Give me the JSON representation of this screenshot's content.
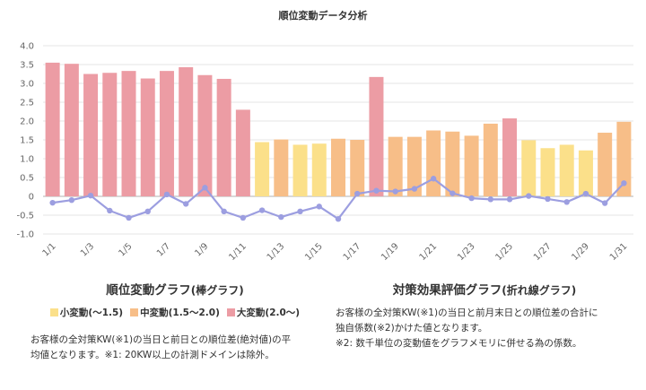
{
  "chart_data": {
    "type": "bar",
    "title": "順位変動データ分析",
    "xlabel": "",
    "ylabel": "",
    "ylim": [
      -1.0,
      4.0
    ],
    "yticks": [
      "4.0",
      "3.5",
      "3.0",
      "2.5",
      "2.0",
      "1.5",
      "1.0",
      "0.5",
      "0",
      "-0.5",
      "-1.0"
    ],
    "categories": [
      "1/1",
      "1/2",
      "1/3",
      "1/4",
      "1/5",
      "1/6",
      "1/7",
      "1/8",
      "1/9",
      "1/10",
      "1/11",
      "1/12",
      "1/13",
      "1/14",
      "1/15",
      "1/16",
      "1/17",
      "1/18",
      "1/19",
      "1/20",
      "1/21",
      "1/22",
      "1/23",
      "1/24",
      "1/25",
      "1/26",
      "1/27",
      "1/28",
      "1/29",
      "1/30",
      "1/31"
    ],
    "x_tick_labels": [
      "1/1",
      "1/3",
      "1/5",
      "1/7",
      "1/9",
      "1/11",
      "1/13",
      "1/15",
      "1/17",
      "1/19",
      "1/21",
      "1/23",
      "1/25",
      "1/27",
      "1/29",
      "1/31"
    ],
    "series": [
      {
        "name": "順位変動グラフ",
        "type": "bar",
        "values": [
          3.55,
          3.52,
          3.25,
          3.28,
          3.33,
          3.13,
          3.33,
          3.43,
          3.22,
          3.12,
          2.3,
          1.44,
          1.51,
          1.37,
          1.4,
          1.53,
          1.5,
          3.17,
          1.58,
          1.58,
          1.75,
          1.72,
          1.61,
          1.93,
          2.07,
          1.49,
          1.28,
          1.37,
          1.22,
          1.69,
          1.98
        ]
      },
      {
        "name": "対策効果評価グラフ",
        "type": "line",
        "values": [
          -0.17,
          -0.1,
          0.02,
          -0.38,
          -0.57,
          -0.4,
          0.05,
          -0.2,
          0.23,
          -0.4,
          -0.57,
          -0.37,
          -0.55,
          -0.4,
          -0.27,
          -0.6,
          0.07,
          0.15,
          0.13,
          0.2,
          0.47,
          0.08,
          -0.05,
          -0.08,
          -0.08,
          0.01,
          -0.07,
          -0.15,
          0.07,
          -0.18,
          0.35
        ]
      }
    ],
    "colors": {
      "small": "#fbe08a",
      "medium": "#f7be88",
      "large": "#ec9ca4",
      "line": "#9c9ee0",
      "grid": "#e6e6e6",
      "zero": "#b0b0b0"
    },
    "grid": true
  },
  "bar_panel": {
    "title": "順位変動グラフ",
    "title_sub": "(棒グラフ)",
    "legend": [
      {
        "label": "小変動(～1.5)",
        "color": "#fbe08a"
      },
      {
        "label": "中変動(1.5～2.0)",
        "color": "#f7be88"
      },
      {
        "label": "大変動(2.0～)",
        "color": "#ec9ca4"
      }
    ],
    "desc_1": "お客様の全対策KW(※1)の当日と前日との順位差(絶対値)の平",
    "desc_2": "均値となります。※1: 20KW以上の計測ドメインは除外。"
  },
  "line_panel": {
    "title": "対策効果評価グラフ",
    "title_sub": "(折れ線グラフ)",
    "desc_1": "お客様の全対策KW(※1)の当日と前月末日との順位差の合計に",
    "desc_2": "独自係数(※2)かけた値となります。",
    "desc_3": "※2: 数千単位の変動値をグラフメモリに併せる為の係数。"
  }
}
